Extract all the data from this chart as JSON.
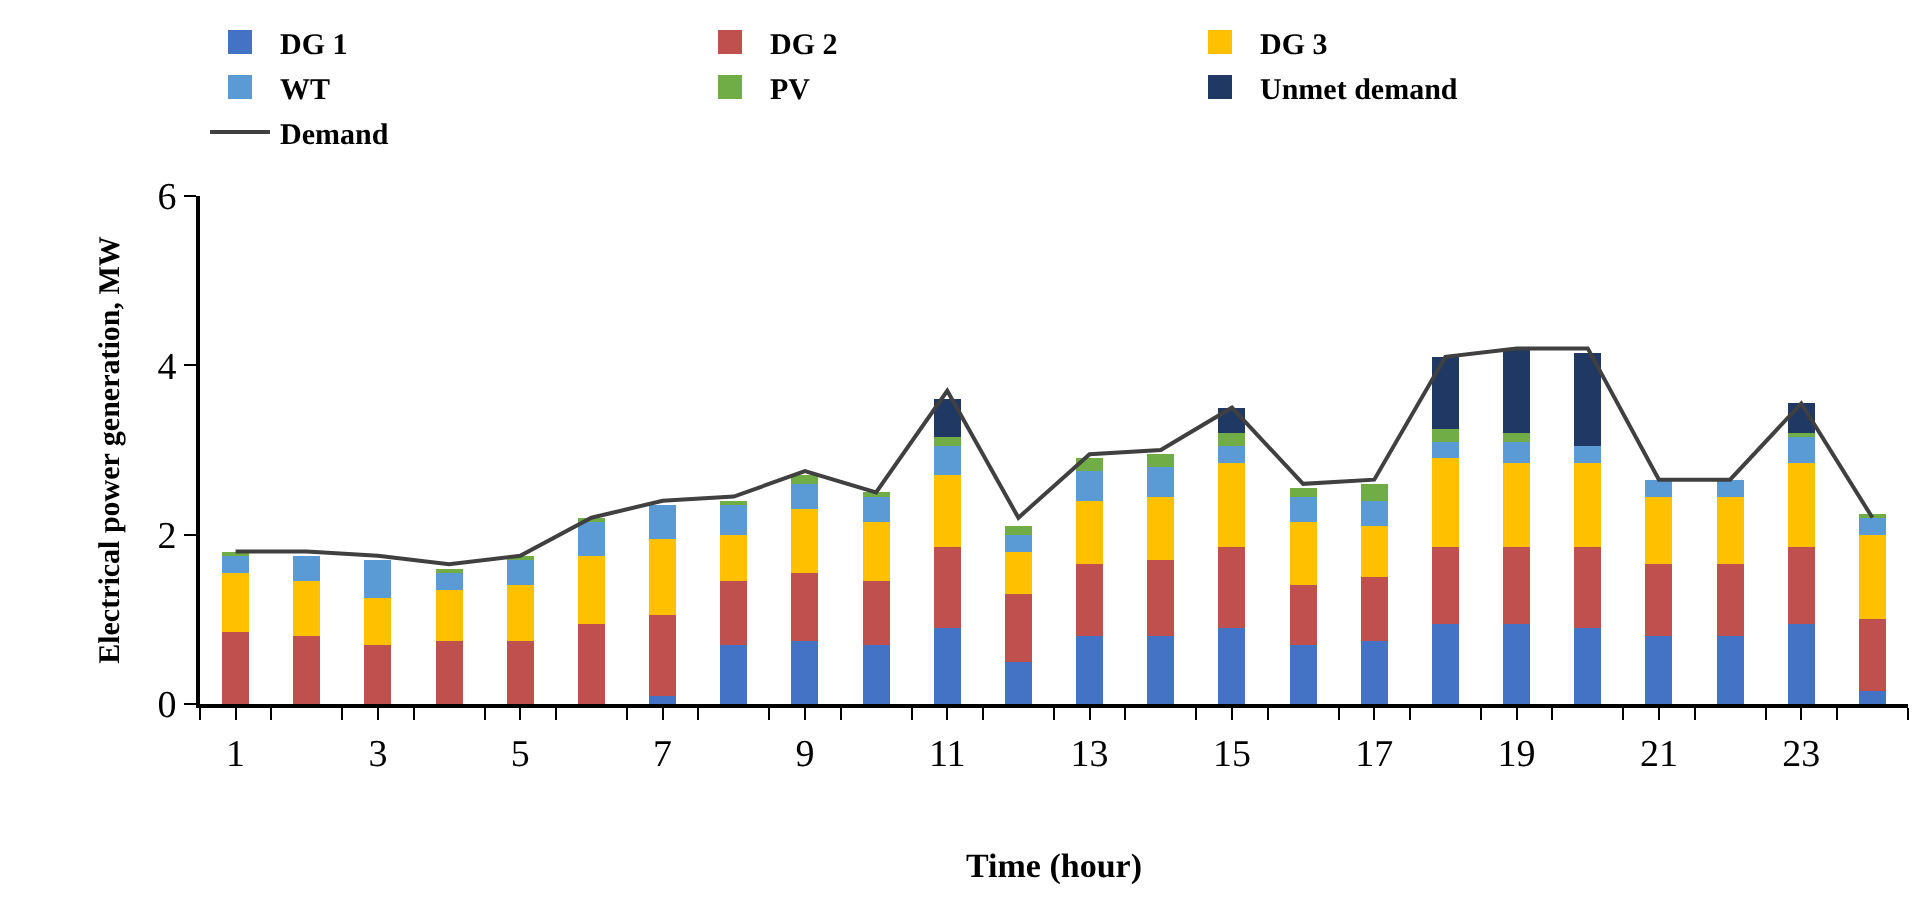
{
  "chart_data": {
    "type": "bar",
    "stacked": true,
    "xlabel": "Time (hour)",
    "ylabel": "Electrical power generation, MW",
    "x": [
      1,
      2,
      3,
      4,
      5,
      6,
      7,
      8,
      9,
      10,
      11,
      12,
      13,
      14,
      15,
      16,
      17,
      18,
      19,
      20,
      21,
      22,
      23,
      24
    ],
    "xlim": [
      0.5,
      24.5
    ],
    "xticks": [
      1,
      3,
      5,
      7,
      9,
      11,
      13,
      15,
      17,
      19,
      21,
      23
    ],
    "ylim": [
      0,
      6
    ],
    "yticks": [
      0,
      2,
      4,
      6
    ],
    "legend": "top",
    "series": [
      {
        "name": "DG 1",
        "color": "#4472c4",
        "values": [
          0,
          0,
          0,
          0,
          0,
          0,
          0.1,
          0.7,
          0.75,
          0.7,
          0.9,
          0.5,
          0.8,
          0.8,
          0.9,
          0.7,
          0.75,
          0.95,
          0.95,
          0.9,
          0.8,
          0.8,
          0.95,
          0.15
        ]
      },
      {
        "name": "DG 2",
        "color": "#c0504d",
        "values": [
          0.85,
          0.8,
          0.7,
          0.75,
          0.75,
          0.95,
          0.95,
          0.75,
          0.8,
          0.75,
          0.95,
          0.8,
          0.85,
          0.9,
          0.95,
          0.7,
          0.75,
          0.9,
          0.9,
          0.95,
          0.85,
          0.85,
          0.9,
          0.85
        ]
      },
      {
        "name": "DG 3",
        "color": "#ffc000",
        "values": [
          0.7,
          0.65,
          0.55,
          0.6,
          0.65,
          0.8,
          0.9,
          0.55,
          0.75,
          0.7,
          0.85,
          0.5,
          0.75,
          0.75,
          1.0,
          0.75,
          0.6,
          1.05,
          1.0,
          1.0,
          0.8,
          0.8,
          1.0,
          1.0
        ]
      },
      {
        "name": "WT",
        "color": "#5b9bd5",
        "values": [
          0.2,
          0.3,
          0.45,
          0.2,
          0.3,
          0.4,
          0.4,
          0.35,
          0.3,
          0.3,
          0.35,
          0.2,
          0.35,
          0.35,
          0.2,
          0.3,
          0.3,
          0.2,
          0.25,
          0.2,
          0.2,
          0.2,
          0.3,
          0.2
        ]
      },
      {
        "name": "PV",
        "color": "#70ad47",
        "values": [
          0.05,
          null,
          null,
          0.05,
          0.05,
          0.05,
          null,
          0.05,
          0.1,
          0.05,
          0.1,
          0.1,
          0.15,
          0.15,
          0.15,
          0.1,
          0.2,
          0.15,
          0.1,
          0,
          0,
          0,
          0.05,
          0.05
        ]
      },
      {
        "name": "Unmet demand",
        "color": "#1f3864",
        "values": [
          0,
          0,
          0,
          0,
          0,
          0,
          0,
          0,
          0,
          0,
          0.45,
          0,
          0,
          0,
          0.3,
          0,
          0,
          0.85,
          1.0,
          1.1,
          0,
          0,
          0.35,
          0
        ]
      },
      {
        "name": "Demand",
        "type": "line",
        "color": "#404040",
        "values": [
          1.8,
          1.8,
          1.75,
          1.65,
          1.75,
          2.2,
          2.4,
          2.45,
          2.75,
          2.5,
          3.7,
          2.2,
          2.95,
          3.0,
          3.5,
          2.6,
          2.65,
          4.1,
          4.2,
          4.2,
          2.65,
          2.65,
          3.55,
          2.2
        ]
      }
    ]
  }
}
